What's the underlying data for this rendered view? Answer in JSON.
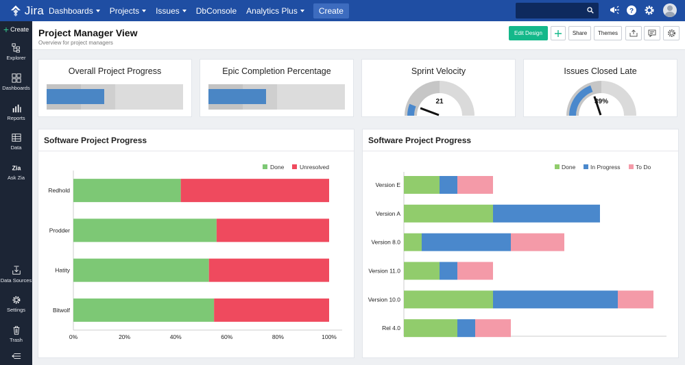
{
  "brand": {
    "name": "Jira"
  },
  "topnav": {
    "items": [
      {
        "label": "Dashboards",
        "dropdown": true
      },
      {
        "label": "Projects",
        "dropdown": true
      },
      {
        "label": "Issues",
        "dropdown": true
      },
      {
        "label": "DbConsole",
        "dropdown": false
      },
      {
        "label": "Analytics Plus",
        "dropdown": true
      }
    ],
    "create_label": "Create"
  },
  "sidebar": {
    "create_label": "Create",
    "items": [
      {
        "label": "Explorer",
        "icon": "explorer-icon"
      },
      {
        "label": "Dashboards",
        "icon": "dashboards-icon"
      },
      {
        "label": "Reports",
        "icon": "reports-icon"
      },
      {
        "label": "Data",
        "icon": "data-icon"
      },
      {
        "label": "Ask Zia",
        "icon": "zia-icon"
      },
      {
        "label": "Data Sources",
        "icon": "data-sources-icon"
      },
      {
        "label": "Settings",
        "icon": "gear-icon"
      },
      {
        "label": "Trash",
        "icon": "trash-icon"
      }
    ]
  },
  "header": {
    "title": "Project Manager View",
    "subtitle": "Overview for project managers",
    "edit_design_label": "Edit Design",
    "share_label": "Share",
    "themes_label": "Themes"
  },
  "kpis": {
    "overall": {
      "title": "Overall Project Progress",
      "value_fraction": 0.42
    },
    "epic": {
      "title": "Epic Completion Percentage",
      "value_fraction": 0.42
    },
    "velocity": {
      "title": "Sprint Velocity",
      "value": "21",
      "fraction": 0.12
    },
    "late": {
      "title": "Issues Closed Late",
      "value": "39%",
      "fraction": 0.39
    }
  },
  "colors": {
    "topbar": "#1f4ea3",
    "done": "#7dc875",
    "unresolved": "#ef4a5e",
    "done2": "#91cc6c",
    "in_progress": "#4a88cc",
    "todo": "#f49aa8",
    "accent": "#14b88a"
  },
  "chart_data": [
    {
      "type": "bar",
      "orientation": "horizontal",
      "stacked": "percent",
      "title": "Software Project Progress",
      "categories": [
        "Redhold",
        "Prodder",
        "Hatity",
        "Bitwolf"
      ],
      "series": [
        {
          "name": "Done",
          "values": [
            42,
            56,
            53,
            55
          ]
        },
        {
          "name": "Unresolved",
          "values": [
            58,
            44,
            47,
            45
          ]
        }
      ],
      "xticks": [
        "0%",
        "20%",
        "40%",
        "60%",
        "80%",
        "100%"
      ],
      "xlim": [
        0,
        100
      ],
      "legend": "top-right"
    },
    {
      "type": "bar",
      "orientation": "horizontal",
      "stacked": true,
      "title": "Software Project Progress",
      "categories": [
        "Version E",
        "Version A",
        "Version 8.0",
        "Version 11.0",
        "Version 10.0",
        "Rel 4.0"
      ],
      "series": [
        {
          "name": "Done",
          "values": [
            2,
            5,
            1,
            2,
            5,
            3
          ]
        },
        {
          "name": "In Progress",
          "values": [
            1,
            6,
            5,
            1,
            7,
            1
          ]
        },
        {
          "name": "To Do",
          "values": [
            2,
            0,
            3,
            2,
            2,
            2
          ]
        }
      ],
      "xlim": [
        0,
        15
      ],
      "legend": "top-right"
    }
  ]
}
